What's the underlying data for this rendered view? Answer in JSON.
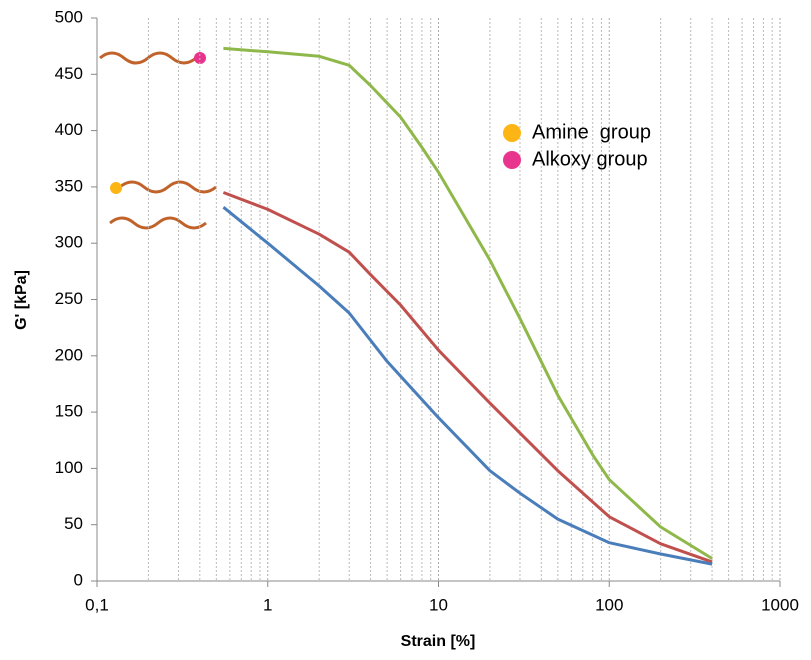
{
  "chart_data": {
    "type": "line",
    "xlabel": "Strain [%]",
    "ylabel": "G' [kPa]",
    "xscale": "log",
    "xlim": [
      0.1,
      1000
    ],
    "xticks": [
      {
        "value": 0.1,
        "label": "0,1"
      },
      1,
      10,
      100,
      1000
    ],
    "ylim": [
      0,
      500
    ],
    "yticks": [
      0,
      50,
      100,
      150,
      200,
      250,
      300,
      350,
      400,
      450,
      500
    ],
    "x_minor_grid": true,
    "legend": [
      {
        "label": "Amine  group",
        "color": "#fdb515"
      },
      {
        "label": "Alkoxy group",
        "color": "#e8348c"
      }
    ],
    "series": [
      {
        "color": "#8fb84a",
        "x": [
          0.55,
          1,
          2,
          3,
          4,
          6,
          8,
          10,
          20,
          30,
          50,
          80,
          100,
          200,
          400
        ],
        "values": [
          473,
          470,
          466,
          458,
          440,
          412,
          385,
          363,
          285,
          233,
          165,
          112,
          90,
          48,
          20
        ]
      },
      {
        "color": "#c0504d",
        "x": [
          0.55,
          1,
          2,
          3,
          4,
          6,
          10,
          20,
          50,
          100,
          200,
          400
        ],
        "values": [
          345,
          330,
          308,
          292,
          272,
          245,
          205,
          158,
          98,
          57,
          33,
          17
        ]
      },
      {
        "color": "#4a7ebb",
        "x": [
          0.55,
          1,
          2,
          3,
          5,
          10,
          20,
          30,
          50,
          100,
          200,
          400
        ],
        "values": [
          332,
          300,
          262,
          238,
          195,
          145,
          98,
          78,
          55,
          34,
          24,
          15
        ]
      }
    ]
  }
}
